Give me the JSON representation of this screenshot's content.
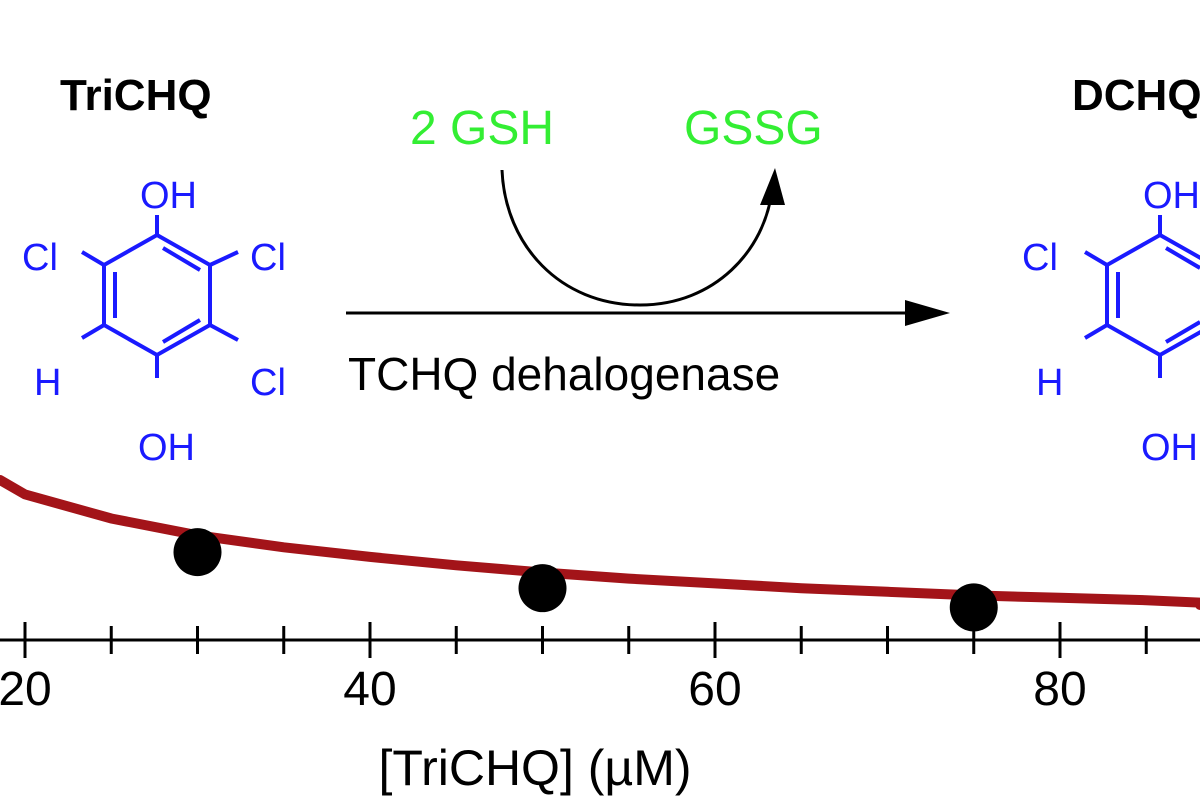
{
  "scheme": {
    "substrate_name": "TriCHQ",
    "product_name": "DCHQ",
    "cofactor_in": "2 GSH",
    "cofactor_out": "GSSG",
    "enzyme": "TCHQ dehalogenase",
    "substrate_atoms": {
      "top": "OH",
      "bottom": "OH",
      "left_top": "Cl",
      "left_bottom": "H",
      "right_top": "Cl",
      "right_bottom": "Cl"
    },
    "product_atoms": {
      "top": "OH",
      "bottom": "OH",
      "left_top": "Cl",
      "left_bottom": "H"
    }
  },
  "chart_data": {
    "type": "scatter",
    "xlabel": "[TriCHQ] (µM)",
    "xlim": [
      18.5,
      99
    ],
    "x_major_ticks": [
      20,
      40,
      60,
      80
    ],
    "x_tick_labels": [
      "20",
      "40",
      "60",
      "80"
    ],
    "x_minor_step": 5,
    "series": [
      {
        "kind": "points",
        "x": [
          30,
          50,
          75
        ],
        "y": [
          1.88,
          1.58,
          1.42
        ]
      },
      {
        "kind": "fit",
        "x": [
          18.5,
          20,
          25,
          30,
          35,
          40,
          45,
          50,
          55,
          60,
          65,
          70,
          75,
          80,
          85,
          90,
          95,
          99
        ],
        "y": [
          2.48,
          2.36,
          2.16,
          2.02,
          1.92,
          1.84,
          1.77,
          1.71,
          1.66,
          1.62,
          1.58,
          1.55,
          1.52,
          1.5,
          1.48,
          1.46,
          1.45,
          1.44
        ]
      }
    ],
    "colors": {
      "fit_line": "#a31419",
      "points": "#000000",
      "scheme_text": "#000000",
      "molecule": "#1a1aff",
      "cofactor": "#33ee33"
    }
  }
}
